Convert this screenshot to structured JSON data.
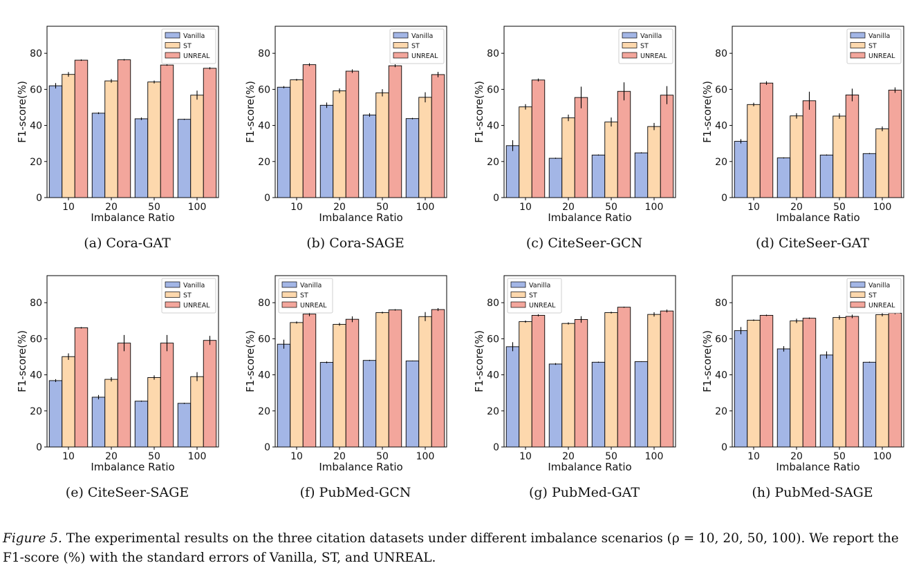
{
  "figure": {
    "caption_label": "Figure 5.",
    "caption_text": "The experimental results on the three citation datasets under different imbalance scenarios (ρ = 10, 20, 50, 100). We report the F1-score (%) with the standard errors of Vanilla, ST, and UNREAL."
  },
  "colors": {
    "Vanilla": "#a3b6e6",
    "ST": "#fdd8ad",
    "UNREAL": "#f3a69c",
    "edge": "#000000"
  },
  "chart_data": [
    {
      "type": "bar",
      "subcaption": "(a) Cora-GAT",
      "xlabel": "Imbalance Ratio",
      "ylabel": "F1-score(%)",
      "ylim": [
        0,
        95
      ],
      "yticks": [
        0,
        20,
        40,
        60,
        80
      ],
      "categories": [
        "10",
        "20",
        "50",
        "100"
      ],
      "legend": "top-right",
      "series": [
        {
          "name": "Vanilla",
          "values": [
            62,
            46.8,
            43.7,
            43.4
          ],
          "errors": [
            1.5,
            0.5,
            0.7,
            0.3
          ]
        },
        {
          "name": "ST",
          "values": [
            68.3,
            64.7,
            64.1,
            56.8
          ],
          "errors": [
            1.3,
            1.0,
            0.8,
            2.5
          ]
        },
        {
          "name": "UNREAL",
          "values": [
            76.2,
            76.4,
            73.5,
            71.7
          ],
          "errors": [
            0.4,
            0.4,
            0.4,
            0.6
          ]
        }
      ]
    },
    {
      "type": "bar",
      "subcaption": "(b) Cora-SAGE",
      "xlabel": "Imbalance Ratio",
      "ylabel": "F1-score(%)",
      "ylim": [
        0,
        95
      ],
      "yticks": [
        0,
        20,
        40,
        60,
        80
      ],
      "categories": [
        "10",
        "20",
        "50",
        "100"
      ],
      "legend": "top-right",
      "series": [
        {
          "name": "Vanilla",
          "values": [
            61.2,
            51.2,
            45.8,
            43.8
          ],
          "errors": [
            0.6,
            1.5,
            1.0,
            0.4
          ]
        },
        {
          "name": "ST",
          "values": [
            65.3,
            59.2,
            58.1,
            55.6
          ],
          "errors": [
            0.5,
            1.3,
            2.0,
            2.8
          ]
        },
        {
          "name": "UNREAL",
          "values": [
            73.7,
            70.1,
            73.1,
            68.2
          ],
          "errors": [
            0.8,
            1.0,
            0.8,
            1.5
          ]
        }
      ]
    },
    {
      "type": "bar",
      "subcaption": "(c) CiteSeer-GCN",
      "xlabel": "Imbalance Ratio",
      "ylabel": "F1-score(%)",
      "ylim": [
        0,
        95
      ],
      "yticks": [
        0,
        20,
        40,
        60,
        80
      ],
      "categories": [
        "10",
        "20",
        "50",
        "100"
      ],
      "legend": "top-right",
      "series": [
        {
          "name": "Vanilla",
          "values": [
            28.8,
            21.8,
            23.6,
            24.8
          ],
          "errors": [
            3.0,
            0.3,
            0.3,
            0.3
          ]
        },
        {
          "name": "ST",
          "values": [
            50.3,
            44.2,
            41.9,
            39.4
          ],
          "errors": [
            1.5,
            1.8,
            2.5,
            2.0
          ]
        },
        {
          "name": "UNREAL",
          "values": [
            65.2,
            55.5,
            58.9,
            56.8
          ],
          "errors": [
            0.8,
            6.0,
            5.0,
            5.0
          ]
        }
      ]
    },
    {
      "type": "bar",
      "subcaption": "(d) CiteSeer-GAT",
      "xlabel": "Imbalance Ratio",
      "ylabel": "F1-score(%)",
      "ylim": [
        0,
        95
      ],
      "yticks": [
        0,
        20,
        40,
        60,
        80
      ],
      "categories": [
        "10",
        "20",
        "50",
        "100"
      ],
      "legend": "top-right",
      "series": [
        {
          "name": "Vanilla",
          "values": [
            31.2,
            22.0,
            23.6,
            24.4
          ],
          "errors": [
            1.2,
            0.3,
            0.3,
            0.3
          ]
        },
        {
          "name": "ST",
          "values": [
            51.6,
            45.3,
            45.2,
            38.1
          ],
          "errors": [
            1.0,
            1.5,
            1.5,
            1.3
          ]
        },
        {
          "name": "UNREAL",
          "values": [
            63.5,
            53.7,
            56.9,
            59.6
          ],
          "errors": [
            1.0,
            5.0,
            3.5,
            1.5
          ]
        }
      ]
    },
    {
      "type": "bar",
      "subcaption": "(e) CiteSeer-SAGE",
      "xlabel": "Imbalance Ratio",
      "ylabel": "F1-score(%)",
      "ylim": [
        0,
        95
      ],
      "yticks": [
        0,
        20,
        40,
        60,
        80
      ],
      "categories": [
        "10",
        "20",
        "50",
        "100"
      ],
      "legend": "top-right",
      "series": [
        {
          "name": "Vanilla",
          "values": [
            36.8,
            27.6,
            25.4,
            24.2
          ],
          "errors": [
            0.8,
            1.2,
            0.3,
            0.3
          ]
        },
        {
          "name": "ST",
          "values": [
            50.1,
            37.5,
            38.5,
            39.0
          ],
          "errors": [
            1.8,
            1.2,
            1.2,
            2.5
          ]
        },
        {
          "name": "UNREAL",
          "values": [
            66.1,
            57.6,
            57.6,
            59.1
          ],
          "errors": [
            0.4,
            4.5,
            4.5,
            2.5
          ]
        }
      ]
    },
    {
      "type": "bar",
      "subcaption": "(f) PubMed-GCN",
      "xlabel": "Imbalance Ratio",
      "ylabel": "F1-score(%)",
      "ylim": [
        0,
        95
      ],
      "yticks": [
        0,
        20,
        40,
        60,
        80
      ],
      "categories": [
        "10",
        "20",
        "50",
        "100"
      ],
      "legend": "top-left",
      "series": [
        {
          "name": "Vanilla",
          "values": [
            57.0,
            46.9,
            48.0,
            47.7
          ],
          "errors": [
            2.5,
            0.5,
            0.3,
            0.2
          ]
        },
        {
          "name": "ST",
          "values": [
            69.0,
            68.0,
            74.5,
            72.3
          ],
          "errors": [
            0.6,
            0.8,
            0.5,
            2.5
          ]
        },
        {
          "name": "UNREAL",
          "values": [
            73.7,
            70.8,
            76.0,
            76.2
          ],
          "errors": [
            1.2,
            1.6,
            0.4,
            0.8
          ]
        }
      ]
    },
    {
      "type": "bar",
      "subcaption": "(g) PubMed-GAT",
      "xlabel": "Imbalance Ratio",
      "ylabel": "F1-score(%)",
      "ylim": [
        0,
        95
      ],
      "yticks": [
        0,
        20,
        40,
        60,
        80
      ],
      "categories": [
        "10",
        "20",
        "50",
        "100"
      ],
      "legend": "top-left",
      "series": [
        {
          "name": "Vanilla",
          "values": [
            55.6,
            46.0,
            47.0,
            47.3
          ],
          "errors": [
            2.5,
            0.5,
            0.3,
            0.2
          ]
        },
        {
          "name": "ST",
          "values": [
            69.5,
            68.5,
            74.5,
            73.5
          ],
          "errors": [
            0.6,
            0.6,
            0.5,
            1.2
          ]
        },
        {
          "name": "UNREAL",
          "values": [
            73.0,
            70.7,
            77.5,
            75.4
          ],
          "errors": [
            0.6,
            1.8,
            0.3,
            0.8
          ]
        }
      ]
    },
    {
      "type": "bar",
      "subcaption": "(h) PubMed-SAGE",
      "xlabel": "Imbalance Ratio",
      "ylabel": "F1-score(%)",
      "ylim": [
        0,
        95
      ],
      "yticks": [
        0,
        20,
        40,
        60,
        80
      ],
      "categories": [
        "10",
        "20",
        "50",
        "100"
      ],
      "legend": "top-right",
      "series": [
        {
          "name": "Vanilla",
          "values": [
            64.5,
            54.4,
            51.0,
            47.0
          ],
          "errors": [
            2.0,
            1.5,
            2.0,
            0.3
          ]
        },
        {
          "name": "ST",
          "values": [
            70.3,
            69.9,
            71.8,
            73.4
          ],
          "errors": [
            0.4,
            1.2,
            1.2,
            1.0
          ]
        },
        {
          "name": "UNREAL",
          "values": [
            73.0,
            71.4,
            72.4,
            74.2
          ],
          "errors": [
            0.4,
            0.4,
            1.0,
            0.6
          ]
        }
      ]
    }
  ]
}
